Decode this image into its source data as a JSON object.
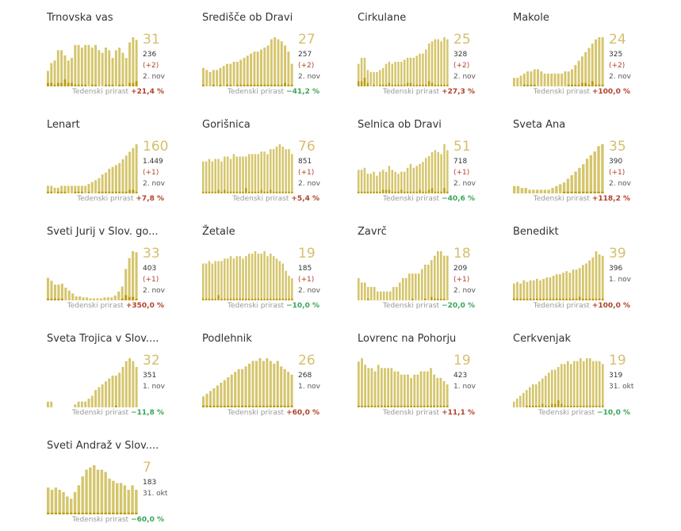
{
  "colors": {
    "total": "#d5c56c",
    "new": "#b89d10",
    "up": "#b0422b",
    "down": "#3aa55a"
  },
  "label_weekly": "Tedenski prirast",
  "chart_data": [
    {
      "type": "bar",
      "name": "Trnovska vas",
      "total": "31",
      "active": "236",
      "delta": "(+2)",
      "date": "2. nov",
      "weekly": "+21,4 %",
      "trend": "up",
      "values": [
        6,
        9,
        10,
        14,
        14,
        12,
        10,
        11,
        16,
        16,
        15,
        16,
        16,
        15,
        16,
        14,
        13,
        15,
        14,
        11,
        14,
        15,
        13,
        11,
        17,
        19,
        18
      ],
      "new": [
        2,
        2,
        1,
        2,
        2,
        4,
        2,
        2,
        1,
        1,
        1,
        1,
        0,
        1,
        1,
        0,
        0,
        1,
        1,
        1,
        0,
        1,
        1,
        0,
        2,
        2,
        3
      ]
    },
    {
      "type": "bar",
      "name": "Središče ob Dravi",
      "total": "27",
      "active": "257",
      "delta": "(+2)",
      "date": "2. nov",
      "weekly": "−41,2 %",
      "trend": "down",
      "values": [
        9,
        8,
        7,
        8,
        8,
        9,
        10,
        11,
        11,
        12,
        12,
        13,
        14,
        15,
        16,
        17,
        17,
        18,
        19,
        20,
        23,
        24,
        23,
        22,
        20,
        17,
        11
      ],
      "new": [
        1,
        0,
        0,
        1,
        0,
        1,
        0,
        1,
        1,
        0,
        1,
        1,
        1,
        1,
        1,
        1,
        1,
        1,
        1,
        1,
        1,
        1,
        1,
        1,
        2,
        1,
        1
      ]
    },
    {
      "type": "bar",
      "name": "Cirkulane",
      "total": "25",
      "active": "328",
      "delta": "(+2)",
      "date": "2. nov",
      "weekly": "+27,3 %",
      "trend": "up",
      "values": [
        11,
        14,
        14,
        8,
        7,
        7,
        7,
        8,
        9,
        11,
        12,
        11,
        12,
        12,
        12,
        13,
        14,
        14,
        14,
        15,
        16,
        16,
        18,
        21,
        22,
        23,
        23,
        22,
        24,
        23
      ],
      "new": [
        3,
        3,
        5,
        2,
        0,
        1,
        0,
        1,
        1,
        1,
        2,
        1,
        1,
        1,
        1,
        1,
        2,
        2,
        1,
        1,
        1,
        1,
        1,
        3,
        2,
        1,
        1,
        1,
        1,
        1
      ]
    },
    {
      "type": "bar",
      "name": "Makole",
      "total": "24",
      "active": "325",
      "delta": "(+2)",
      "date": "2. nov",
      "weekly": "+100,0 %",
      "trend": "up",
      "values": [
        4,
        4,
        5,
        6,
        7,
        7,
        8,
        8,
        7,
        6,
        6,
        6,
        6,
        6,
        6,
        7,
        7,
        8,
        10,
        12,
        14,
        16,
        18,
        20,
        22,
        23,
        23
      ],
      "new": [
        0,
        0,
        0,
        1,
        1,
        1,
        1,
        0,
        0,
        0,
        0,
        0,
        0,
        0,
        0,
        0,
        1,
        1,
        1,
        1,
        2,
        2,
        1,
        3,
        1,
        1,
        1
      ]
    },
    {
      "type": "bar",
      "name": "Lenart",
      "total": "160",
      "active": "1.449",
      "delta": "(+1)",
      "date": "2. nov",
      "weekly": "+7,8 %",
      "trend": "up",
      "values": [
        4,
        4,
        3,
        3,
        4,
        4,
        4,
        4,
        4,
        4,
        4,
        4,
        5,
        6,
        7,
        8,
        10,
        11,
        13,
        14,
        15,
        16,
        18,
        20,
        22,
        24,
        26
      ],
      "new": [
        1,
        1,
        0,
        1,
        1,
        1,
        0,
        0,
        1,
        1,
        1,
        0,
        1,
        0,
        0,
        1,
        1,
        1,
        1,
        1,
        1,
        1,
        1,
        1,
        2,
        2,
        1
      ]
    },
    {
      "type": "bar",
      "name": "Gorišnica",
      "total": "76",
      "active": "851",
      "delta": "(+1)",
      "date": "2. nov",
      "weekly": "+5,4 %",
      "trend": "up",
      "values": [
        13,
        13,
        14,
        13,
        14,
        14,
        13,
        15,
        15,
        14,
        16,
        15,
        15,
        15,
        15,
        16,
        16,
        16,
        16,
        17,
        17,
        16,
        18,
        18,
        19,
        20,
        19,
        18,
        18,
        16
      ],
      "new": [
        1,
        1,
        1,
        1,
        1,
        2,
        1,
        2,
        1,
        1,
        1,
        1,
        1,
        1,
        3,
        1,
        1,
        1,
        1,
        2,
        1,
        1,
        2,
        1,
        1,
        1,
        1,
        1,
        1,
        1
      ]
    },
    {
      "type": "bar",
      "name": "Selnica ob Dravi",
      "total": "51",
      "active": "718",
      "delta": "(+1)",
      "date": "2. nov",
      "weekly": "−40,6 %",
      "trend": "down",
      "values": [
        12,
        12,
        13,
        10,
        10,
        11,
        9,
        11,
        12,
        11,
        14,
        12,
        11,
        10,
        11,
        11,
        13,
        15,
        13,
        14,
        15,
        16,
        18,
        19,
        21,
        22,
        21,
        20,
        25,
        22
      ],
      "new": [
        1,
        1,
        1,
        1,
        1,
        1,
        1,
        1,
        2,
        2,
        2,
        1,
        1,
        1,
        2,
        1,
        1,
        1,
        1,
        1,
        2,
        1,
        1,
        2,
        3,
        1,
        1,
        1,
        3,
        1
      ]
    },
    {
      "type": "bar",
      "name": "Sveta Ana",
      "total": "35",
      "active": "390",
      "delta": "(+1)",
      "date": "2. nov",
      "weekly": "+118,2 %",
      "trend": "up",
      "values": [
        4,
        4,
        3,
        3,
        2,
        2,
        2,
        2,
        2,
        2,
        3,
        4,
        5,
        6,
        8,
        10,
        12,
        14,
        16,
        19,
        21,
        23,
        26,
        27
      ],
      "new": [
        0,
        0,
        0,
        0,
        0,
        0,
        0,
        0,
        0,
        0,
        0,
        0,
        0,
        1,
        1,
        1,
        1,
        1,
        1,
        1,
        1,
        1,
        1,
        1
      ]
    },
    {
      "type": "bar",
      "name": "Sveti Jurij v Slov. go...",
      "total": "33",
      "active": "403",
      "delta": "(+1)",
      "date": "2. nov",
      "weekly": "+350,0 %",
      "trend": "up",
      "values": [
        23,
        20,
        16,
        16,
        17,
        13,
        10,
        7,
        4,
        4,
        3,
        3,
        2,
        2,
        2,
        2,
        3,
        3,
        3,
        5,
        9,
        14,
        32,
        43,
        50,
        49
      ],
      "new": [
        1,
        1,
        1,
        1,
        1,
        0,
        0,
        0,
        0,
        0,
        0,
        0,
        0,
        0,
        0,
        0,
        0,
        0,
        0,
        0,
        0,
        1,
        3,
        2,
        2,
        1
      ]
    },
    {
      "type": "bar",
      "name": "Žetale",
      "total": "19",
      "active": "185",
      "delta": "(+1)",
      "date": "2. nov",
      "weekly": "−10,0 %",
      "trend": "down",
      "values": [
        15,
        15,
        16,
        15,
        16,
        16,
        16,
        17,
        17,
        18,
        17,
        18,
        18,
        17,
        18,
        19,
        19,
        20,
        19,
        19,
        20,
        18,
        19,
        18,
        17,
        16,
        15,
        12,
        10,
        9
      ],
      "new": [
        1,
        1,
        1,
        1,
        1,
        3,
        1,
        1,
        1,
        1,
        1,
        1,
        1,
        1,
        1,
        1,
        1,
        1,
        1,
        1,
        1,
        1,
        1,
        1,
        1,
        1,
        1,
        1,
        1,
        1
      ]
    },
    {
      "type": "bar",
      "name": "Zavrč",
      "total": "18",
      "active": "209",
      "delta": "(+1)",
      "date": "2. nov",
      "weekly": "−20,0 %",
      "trend": "down",
      "values": [
        5,
        4,
        4,
        3,
        3,
        3,
        2,
        2,
        2,
        2,
        2,
        3,
        3,
        4,
        5,
        5,
        6,
        6,
        6,
        6,
        7,
        8,
        8,
        9,
        10,
        11,
        11,
        10,
        10
      ],
      "new": [
        0,
        0,
        0,
        1,
        0,
        0,
        0,
        0,
        0,
        0,
        0,
        0,
        0,
        0,
        0,
        0,
        0,
        1,
        0,
        0,
        0,
        1,
        0,
        2,
        1,
        1,
        1,
        1,
        0
      ]
    },
    {
      "type": "bar",
      "name": "Benedikt",
      "total": "39",
      "active": "396",
      "delta": "",
      "date": "1. nov",
      "weekly": "+100,0 %",
      "trend": "up",
      "values": [
        11,
        12,
        11,
        13,
        12,
        13,
        13,
        14,
        13,
        14,
        15,
        15,
        16,
        17,
        17,
        18,
        19,
        18,
        20,
        20,
        21,
        23,
        24,
        26,
        28,
        32,
        30,
        29
      ],
      "new": [
        1,
        1,
        1,
        1,
        1,
        1,
        1,
        1,
        1,
        1,
        1,
        1,
        1,
        1,
        1,
        1,
        1,
        1,
        1,
        1,
        2,
        1,
        1,
        1,
        1,
        1,
        1,
        1
      ]
    },
    {
      "type": "bar",
      "name": "Sveta Trojica v Slov....",
      "total": "32",
      "active": "351",
      "delta": "",
      "date": "1. nov",
      "weekly": "−11,8 %",
      "trend": "down",
      "values": [
        2,
        2,
        0,
        0,
        0,
        0,
        0,
        0,
        1,
        2,
        2,
        2,
        3,
        4,
        6,
        7,
        8,
        9,
        10,
        11,
        11,
        12,
        14,
        16,
        17,
        16,
        14
      ],
      "new": [
        0,
        0,
        0,
        0,
        0,
        0,
        0,
        0,
        0,
        0,
        0,
        0,
        0,
        0,
        0,
        0,
        0,
        0,
        0,
        0,
        1,
        0,
        0,
        0,
        0,
        0,
        0
      ]
    },
    {
      "type": "bar",
      "name": "Podlehnik",
      "total": "26",
      "active": "268",
      "delta": "",
      "date": "1. nov",
      "weekly": "+60,0 %",
      "trend": "up",
      "values": [
        4,
        5,
        6,
        7,
        8,
        9,
        10,
        11,
        12,
        13,
        14,
        14,
        15,
        16,
        17,
        17,
        18,
        17,
        18,
        17,
        16,
        17,
        15,
        14,
        13,
        12
      ],
      "new": [
        1,
        1,
        1,
        1,
        1,
        1,
        1,
        1,
        1,
        1,
        1,
        1,
        1,
        1,
        1,
        1,
        1,
        1,
        1,
        1,
        1,
        1,
        1,
        1,
        1,
        1
      ]
    },
    {
      "type": "bar",
      "name": "Lovrenc na Pohorju",
      "total": "19",
      "active": "423",
      "delta": "",
      "date": "1. nov",
      "weekly": "+11,1 %",
      "trend": "up",
      "values": [
        14,
        15,
        13,
        12,
        12,
        11,
        13,
        12,
        12,
        12,
        12,
        11,
        11,
        10,
        10,
        10,
        9,
        10,
        10,
        11,
        11,
        11,
        12,
        10,
        9,
        9,
        8,
        7
      ],
      "new": [
        1,
        1,
        1,
        1,
        1,
        1,
        1,
        1,
        1,
        1,
        1,
        1,
        1,
        1,
        1,
        1,
        1,
        1,
        1,
        1,
        1,
        1,
        1,
        1,
        1,
        1,
        1,
        1
      ]
    },
    {
      "type": "bar",
      "name": "Cerkvenjak",
      "total": "19",
      "active": "319",
      "delta": "",
      "date": "31. okt",
      "weekly": "−10,0 %",
      "trend": "down",
      "values": [
        2,
        3,
        4,
        5,
        6,
        7,
        8,
        8,
        9,
        10,
        11,
        12,
        13,
        13,
        14,
        15,
        15,
        16,
        15,
        16,
        16,
        17,
        16,
        17,
        17,
        16,
        16,
        16,
        15
      ],
      "new": [
        0,
        0,
        0,
        0,
        1,
        1,
        1,
        1,
        1,
        2,
        1,
        1,
        2,
        2,
        4,
        2,
        1,
        1,
        1,
        1,
        1,
        1,
        1,
        1,
        1,
        1,
        1,
        1,
        1
      ]
    },
    {
      "type": "bar",
      "name": "Sveti Andraž v Slov....",
      "total": "7",
      "active": "183",
      "delta": "",
      "date": "31. okt",
      "weekly": "−60,0 %",
      "trend": "down",
      "values": [
        12,
        11,
        12,
        11,
        10,
        8,
        7,
        10,
        13,
        17,
        20,
        21,
        22,
        20,
        20,
        19,
        16,
        15,
        14,
        14,
        13,
        11,
        13,
        11
      ],
      "new": [
        1,
        1,
        1,
        1,
        1,
        1,
        1,
        1,
        1,
        1,
        1,
        1,
        1,
        1,
        1,
        1,
        1,
        1,
        1,
        1,
        1,
        1,
        1,
        1
      ]
    }
  ]
}
